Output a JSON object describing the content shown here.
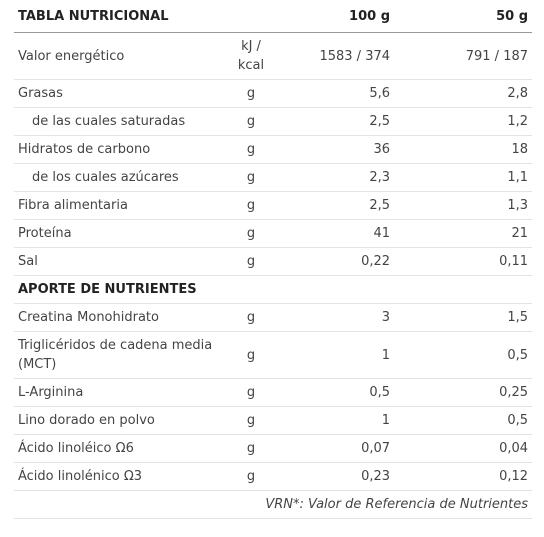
{
  "header": {
    "title": "TABLA NUTRICIONAL",
    "col1": "100 g",
    "col2": "50 g"
  },
  "rows": [
    {
      "name": "Valor energético",
      "unit": "kJ / kcal",
      "v100": "1583 / 374",
      "v50": "791 / 187"
    },
    {
      "name": "Grasas",
      "unit": "g",
      "v100": "5,6",
      "v50": "2,8"
    },
    {
      "name": "de las cuales saturadas",
      "unit": "g",
      "v100": "2,5",
      "v50": "1,2",
      "indent": true
    },
    {
      "name": "Hidratos de carbono",
      "unit": "g",
      "v100": "36",
      "v50": "18"
    },
    {
      "name": "de los cuales azúcares",
      "unit": "g",
      "v100": "2,3",
      "v50": "1,1",
      "indent": true
    },
    {
      "name": "Fibra alimentaria",
      "unit": "g",
      "v100": "2,5",
      "v50": "1,3"
    },
    {
      "name": "Proteína",
      "unit": "g",
      "v100": "41",
      "v50": "21"
    },
    {
      "name": "Sal",
      "unit": "g",
      "v100": "0,22",
      "v50": "0,11"
    },
    {
      "section": "APORTE DE NUTRIENTES"
    },
    {
      "name": "Creatina Monohidrato",
      "unit": "g",
      "v100": "3",
      "v50": "1,5"
    },
    {
      "name": "Triglicéridos de cadena media (MCT)",
      "unit": "g",
      "v100": "1",
      "v50": "0,5"
    },
    {
      "name": "L-Arginina",
      "unit": "g",
      "v100": "0,5",
      "v50": "0,25"
    },
    {
      "name": "Lino dorado en polvo",
      "unit": "g",
      "v100": "1",
      "v50": "0,5"
    },
    {
      "name": "Ácido linoléico Ω6",
      "unit": "g",
      "v100": "0,07",
      "v50": "0,04"
    },
    {
      "name": "Ácido linolénico Ω3",
      "unit": "g",
      "v100": "0,23",
      "v50": "0,12"
    }
  ],
  "footer": "VRN*: Valor de Referencia de Nutrientes"
}
